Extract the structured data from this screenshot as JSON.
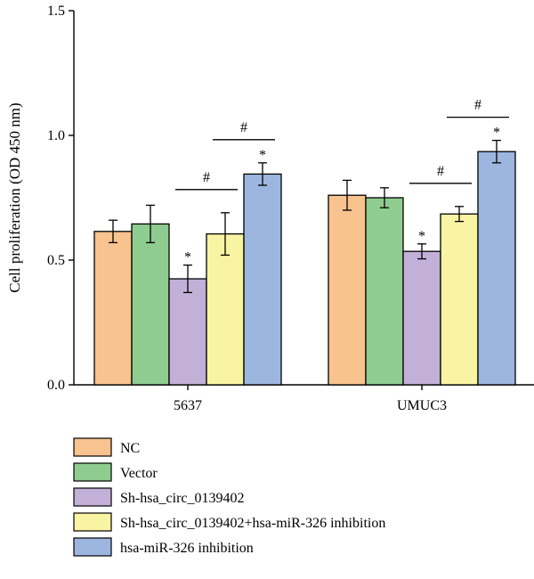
{
  "chart_data": {
    "type": "bar",
    "categories": [
      "5637",
      "UMUC3"
    ],
    "ylabel": "Cell proliferation (OD 450 nm)",
    "xlabel": "",
    "ylim": [
      0,
      1.5
    ],
    "yticks": [
      "0.0",
      "0.5",
      "1.0",
      "1.5"
    ],
    "grid": false,
    "legend_position": "bottom",
    "series": [
      {
        "name": "NC",
        "color": "#F8C38F",
        "values": [
          0.615,
          0.76
        ],
        "errors": [
          0.045,
          0.06
        ]
      },
      {
        "name": "Vector",
        "color": "#8FCC8F",
        "values": [
          0.645,
          0.75
        ],
        "errors": [
          0.075,
          0.04
        ]
      },
      {
        "name": "Sh-hsa_circ_0139402",
        "color": "#C3B0D8",
        "values": [
          0.425,
          0.535
        ],
        "errors": [
          0.055,
          0.03
        ]
      },
      {
        "name": "Sh-hsa_circ_0139402+hsa-miR-326 inhibition",
        "color": "#F9F3A4",
        "values": [
          0.605,
          0.685
        ],
        "errors": [
          0.085,
          0.03
        ]
      },
      {
        "name": "hsa-miR-326 inhibition",
        "color": "#9CB6E0",
        "values": [
          0.845,
          0.935
        ],
        "errors": [
          0.045,
          0.045
        ]
      }
    ],
    "annotations": {
      "star": "*",
      "hash": "#",
      "star_marks": [
        [
          2,
          0
        ],
        [
          4,
          0
        ],
        [
          2,
          1
        ],
        [
          4,
          1
        ]
      ],
      "hash_brackets": [
        [
          2,
          3,
          0
        ],
        [
          3,
          4,
          0
        ],
        [
          3,
          4,
          1
        ],
        [
          2,
          3,
          1
        ]
      ]
    }
  }
}
